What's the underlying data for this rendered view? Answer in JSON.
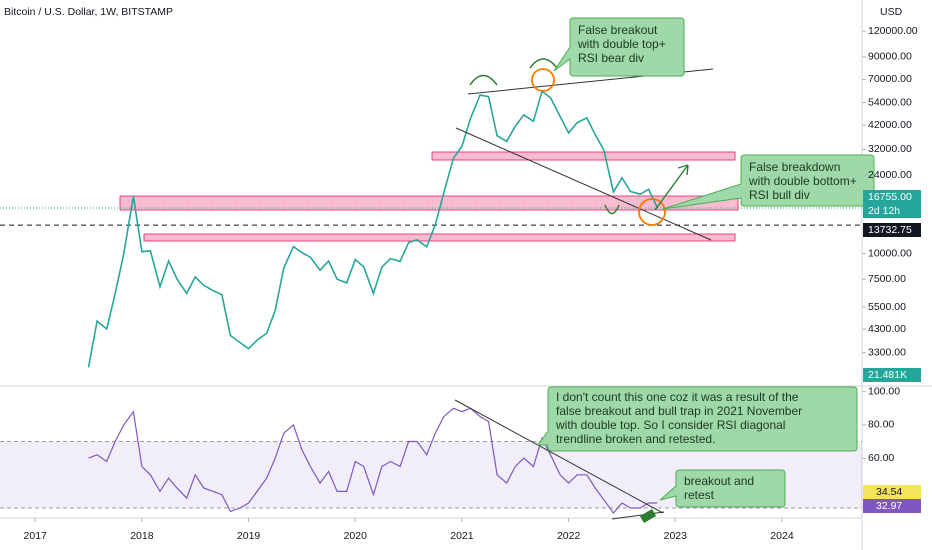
{
  "chart_data": [
    {
      "type": "line",
      "title": "Bitcoin / U.S. Dollar, 1W, BITSTAMP",
      "axis_unit": "USD",
      "ylog": true,
      "color": "#26a69a",
      "xlim": [
        2016.67,
        2024.75
      ],
      "ylim": [
        2300,
        170000
      ],
      "yticks": [
        {
          "value": 120000,
          "label": "120000.00"
        },
        {
          "value": 90000,
          "label": "90000.00"
        },
        {
          "value": 70000,
          "label": "70000.00"
        },
        {
          "value": 54000,
          "label": "54000.00"
        },
        {
          "value": 42000,
          "label": "42000.00"
        },
        {
          "value": 32000,
          "label": "32000.00"
        },
        {
          "value": 24000,
          "label": "24000.00"
        },
        {
          "value": 10000,
          "label": "10000.00"
        },
        {
          "value": 7500,
          "label": "7500.00"
        },
        {
          "value": 5500,
          "label": "5500.00"
        },
        {
          "value": 4300,
          "label": "4300.00"
        },
        {
          "value": 3300,
          "label": "3300.00"
        }
      ],
      "x": [
        2017.5,
        2017.58,
        2017.67,
        2017.75,
        2017.83,
        2017.92,
        2018.0,
        2018.08,
        2018.17,
        2018.25,
        2018.33,
        2018.42,
        2018.5,
        2018.58,
        2018.67,
        2018.75,
        2018.83,
        2018.92,
        2019.0,
        2019.08,
        2019.17,
        2019.25,
        2019.33,
        2019.42,
        2019.5,
        2019.58,
        2019.67,
        2019.75,
        2019.83,
        2019.92,
        2020.0,
        2020.08,
        2020.17,
        2020.25,
        2020.33,
        2020.42,
        2020.5,
        2020.58,
        2020.67,
        2020.75,
        2020.83,
        2020.92,
        2021.0,
        2021.08,
        2021.17,
        2021.25,
        2021.33,
        2021.42,
        2021.5,
        2021.58,
        2021.67,
        2021.75,
        2021.83,
        2021.92,
        2022.0,
        2022.08,
        2022.17,
        2022.25,
        2022.33,
        2022.42,
        2022.5,
        2022.58,
        2022.67,
        2022.75,
        2022.83
      ],
      "values": [
        2800,
        4700,
        4300,
        6400,
        10000,
        19000,
        10200,
        10300,
        6900,
        9200,
        7500,
        6400,
        7700,
        7000,
        6600,
        6300,
        4000,
        3700,
        3450,
        3800,
        4100,
        5300,
        8500,
        10800,
        10100,
        9600,
        8300,
        9200,
        7500,
        7200,
        9350,
        8600,
        6400,
        8600,
        9450,
        9150,
        11300,
        11650,
        10780,
        13800,
        19700,
        29000,
        33100,
        45200,
        58800,
        57700,
        37300,
        35000,
        41500,
        47100,
        43800,
        61300,
        57000,
        46300,
        38500,
        43200,
        45500,
        37700,
        31800,
        19900,
        23300,
        20000,
        19400,
        20500,
        16755
      ],
      "last_price": "16755.00",
      "countdown": "2d 12h",
      "level": 13732.75,
      "level_label": "13732.75",
      "volume_label": "21.481K"
    },
    {
      "type": "line",
      "color": "#7e57c2",
      "xlim": [
        2016.67,
        2024.75
      ],
      "ylim": [
        24,
        104
      ],
      "band": [
        30,
        70
      ],
      "xticks": [
        2017,
        2018,
        2019,
        2020,
        2021,
        2022,
        2023,
        2024
      ],
      "yticks": [
        {
          "value": 100,
          "label": "100.00"
        },
        {
          "value": 80,
          "label": "80.00"
        },
        {
          "value": 60,
          "label": "60.00"
        }
      ],
      "x": [
        2017.5,
        2017.58,
        2017.67,
        2017.75,
        2017.83,
        2017.92,
        2018.0,
        2018.08,
        2018.17,
        2018.25,
        2018.33,
        2018.42,
        2018.5,
        2018.58,
        2018.67,
        2018.75,
        2018.83,
        2018.92,
        2019.0,
        2019.08,
        2019.17,
        2019.25,
        2019.33,
        2019.42,
        2019.5,
        2019.58,
        2019.67,
        2019.75,
        2019.83,
        2019.92,
        2020.0,
        2020.08,
        2020.17,
        2020.25,
        2020.33,
        2020.42,
        2020.5,
        2020.58,
        2020.67,
        2020.75,
        2020.83,
        2020.92,
        2021.0,
        2021.08,
        2021.17,
        2021.25,
        2021.33,
        2021.42,
        2021.5,
        2021.58,
        2021.67,
        2021.75,
        2021.83,
        2021.92,
        2022.0,
        2022.08,
        2022.17,
        2022.25,
        2022.33,
        2022.42,
        2022.5,
        2022.58,
        2022.67,
        2022.75,
        2022.83
      ],
      "values": [
        60,
        62,
        58,
        70,
        80,
        88,
        55,
        50,
        40,
        48,
        42,
        36,
        50,
        42,
        40,
        38,
        28,
        30,
        33,
        40,
        48,
        60,
        75,
        80,
        65,
        55,
        45,
        52,
        40,
        40,
        58,
        55,
        38,
        55,
        58,
        55,
        70,
        70,
        62,
        75,
        85,
        90,
        88,
        90,
        85,
        82,
        50,
        45,
        55,
        60,
        55,
        72,
        62,
        50,
        45,
        50,
        50,
        42,
        35,
        27,
        33,
        30,
        30,
        33,
        33
      ],
      "ma_label": "34.54",
      "last_label": "32.97"
    }
  ],
  "annotations": [
    {
      "lines": [
        "False breakout",
        "with double top+",
        "RSI bear div"
      ]
    },
    {
      "lines": [
        "False breakdown",
        "with double bottom+",
        "RSI bull div"
      ]
    },
    {
      "lines": [
        "I don't count this one coz it was a result of the",
        "false breakout and bull trap in 2021 November",
        "with double top. So I consider RSI diagonal",
        "trendline broken and retested."
      ]
    },
    {
      "lines": [
        "breakout and",
        "retest"
      ]
    }
  ]
}
